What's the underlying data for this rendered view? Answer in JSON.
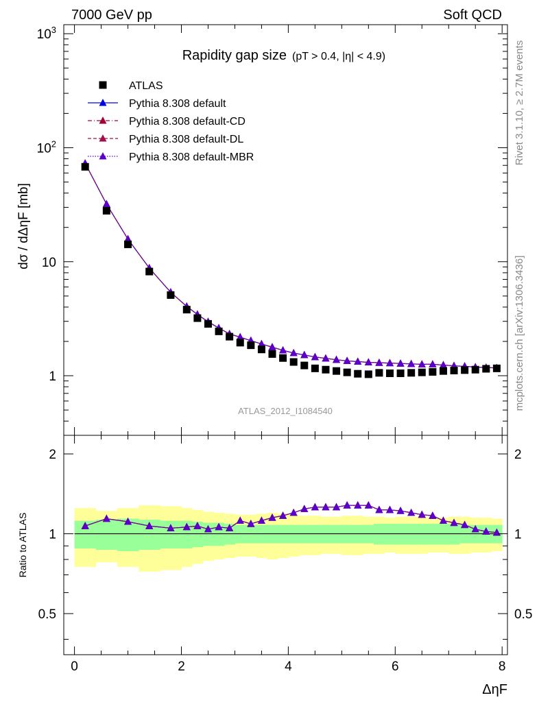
{
  "header": {
    "left": "7000 GeV pp",
    "right": "Soft QCD"
  },
  "side_labels": {
    "right_top": "Rivet 3.1.10, ≥ 2.7M events",
    "right_bottom": "mcplots.cern.ch [arXiv:1306.3436]"
  },
  "chart_data": {
    "type": "scatter",
    "title": "Rapidity gap size",
    "subtitle": "(pT > 0.4, |η| < 4.9)",
    "analysis_label": "ATLAS_2012_I1084540",
    "xlabel": "ΔηF",
    "ylabel": "dσ / dΔηF [mb]",
    "ratio_ylabel": "Ratio to ATLAS",
    "x_ticks": [
      "0",
      "2",
      "4",
      "6",
      "8"
    ],
    "y_ticks": [
      "1",
      "10",
      "10^2",
      "10^3"
    ],
    "ratio_ticks": [
      "0.5",
      "1",
      "2"
    ],
    "xlim": [
      -0.2,
      8.1
    ],
    "ylim": [
      0.3,
      1200
    ],
    "ratio_ylim": [
      0.35,
      2.35
    ],
    "log_y": true,
    "legend_position": "top-left",
    "grid": false,
    "colors": {
      "data": "#000000",
      "default": "#0000dd",
      "cd": "#a0003a",
      "dl": "#a0104a",
      "mbr": "#5a00c8",
      "band_inner": "#99ff99",
      "band_outer": "#ffff99"
    },
    "x": [
      0.2,
      0.6,
      1.0,
      1.4,
      1.8,
      2.1,
      2.3,
      2.5,
      2.7,
      2.9,
      3.1,
      3.3,
      3.5,
      3.7,
      3.9,
      4.1,
      4.3,
      4.5,
      4.7,
      4.9,
      5.1,
      5.3,
      5.5,
      5.7,
      5.9,
      6.1,
      6.3,
      6.5,
      6.7,
      6.9,
      7.1,
      7.3,
      7.5,
      7.7,
      7.9
    ],
    "series": [
      {
        "name": "ATLAS",
        "marker": "square",
        "values": [
          68,
          28,
          14.2,
          8.2,
          5.1,
          3.8,
          3.2,
          2.85,
          2.45,
          2.2,
          1.95,
          1.85,
          1.7,
          1.55,
          1.43,
          1.32,
          1.23,
          1.16,
          1.13,
          1.1,
          1.07,
          1.04,
          1.03,
          1.06,
          1.05,
          1.05,
          1.06,
          1.07,
          1.08,
          1.1,
          1.11,
          1.12,
          1.13,
          1.15,
          1.16
        ]
      },
      {
        "name": "Pythia 8.308 default",
        "marker": "triangle",
        "line": "solid",
        "values": [
          73,
          32,
          15.8,
          8.8,
          5.4,
          4.05,
          3.45,
          2.98,
          2.62,
          2.33,
          2.18,
          2.03,
          1.9,
          1.78,
          1.67,
          1.58,
          1.52,
          1.46,
          1.42,
          1.38,
          1.35,
          1.33,
          1.31,
          1.3,
          1.29,
          1.28,
          1.27,
          1.26,
          1.26,
          1.24,
          1.22,
          1.21,
          1.19,
          1.18,
          1.17
        ]
      },
      {
        "name": "Pythia 8.308 default-CD",
        "marker": "triangle",
        "line": "dashdot",
        "values": [
          73,
          32,
          15.8,
          8.8,
          5.4,
          4.05,
          3.45,
          2.96,
          2.62,
          2.32,
          2.18,
          2.03,
          1.9,
          1.78,
          1.67,
          1.58,
          1.52,
          1.46,
          1.42,
          1.38,
          1.35,
          1.33,
          1.31,
          1.3,
          1.29,
          1.28,
          1.27,
          1.26,
          1.26,
          1.24,
          1.22,
          1.21,
          1.19,
          1.18,
          1.17
        ]
      },
      {
        "name": "Pythia 8.308 default-DL",
        "marker": "triangle",
        "line": "dashed",
        "values": [
          73,
          32,
          15.8,
          8.8,
          5.4,
          4.05,
          3.45,
          2.96,
          2.62,
          2.32,
          2.18,
          2.03,
          1.9,
          1.78,
          1.67,
          1.58,
          1.52,
          1.46,
          1.42,
          1.38,
          1.35,
          1.33,
          1.31,
          1.3,
          1.29,
          1.28,
          1.27,
          1.26,
          1.26,
          1.24,
          1.22,
          1.21,
          1.19,
          1.18,
          1.17
        ]
      },
      {
        "name": "Pythia 8.308 default-MBR",
        "marker": "triangle",
        "line": "dotted",
        "values": [
          73,
          32,
          15.8,
          8.8,
          5.4,
          4.05,
          3.45,
          2.98,
          2.62,
          2.33,
          2.18,
          2.03,
          1.9,
          1.78,
          1.67,
          1.58,
          1.52,
          1.46,
          1.42,
          1.38,
          1.35,
          1.33,
          1.31,
          1.3,
          1.29,
          1.28,
          1.27,
          1.26,
          1.26,
          1.24,
          1.22,
          1.21,
          1.19,
          1.18,
          1.17
        ]
      }
    ],
    "ratio": {
      "reference": 1,
      "values": [
        1.07,
        1.14,
        1.11,
        1.07,
        1.05,
        1.06,
        1.07,
        1.04,
        1.06,
        1.05,
        1.12,
        1.09,
        1.12,
        1.15,
        1.17,
        1.2,
        1.24,
        1.26,
        1.26,
        1.26,
        1.28,
        1.28,
        1.28,
        1.23,
        1.23,
        1.22,
        1.2,
        1.18,
        1.17,
        1.12,
        1.1,
        1.08,
        1.04,
        1.02,
        1.01
      ],
      "band_edges": [
        0,
        0.4,
        0.8,
        1.2,
        1.6,
        2.0,
        2.2,
        2.4,
        2.6,
        2.8,
        3.0,
        3.2,
        3.4,
        3.6,
        3.8,
        4.0,
        4.2,
        4.4,
        4.6,
        4.8,
        5.0,
        5.2,
        5.4,
        5.6,
        5.8,
        6.0,
        6.2,
        6.4,
        6.6,
        6.8,
        7.0,
        7.2,
        7.4,
        7.6,
        7.8,
        8.0
      ],
      "band_inner": [
        0.12,
        0.13,
        0.14,
        0.13,
        0.12,
        0.12,
        0.11,
        0.1,
        0.1,
        0.09,
        0.08,
        0.08,
        0.08,
        0.08,
        0.08,
        0.08,
        0.08,
        0.08,
        0.08,
        0.08,
        0.08,
        0.08,
        0.08,
        0.09,
        0.09,
        0.09,
        0.09,
        0.09,
        0.09,
        0.09,
        0.09,
        0.08,
        0.08,
        0.08,
        0.08
      ],
      "band_outer": [
        0.25,
        0.22,
        0.25,
        0.28,
        0.27,
        0.25,
        0.23,
        0.21,
        0.2,
        0.19,
        0.18,
        0.18,
        0.19,
        0.2,
        0.19,
        0.18,
        0.17,
        0.17,
        0.16,
        0.16,
        0.17,
        0.17,
        0.16,
        0.16,
        0.15,
        0.16,
        0.16,
        0.16,
        0.15,
        0.15,
        0.16,
        0.16,
        0.15,
        0.15,
        0.14
      ]
    }
  }
}
